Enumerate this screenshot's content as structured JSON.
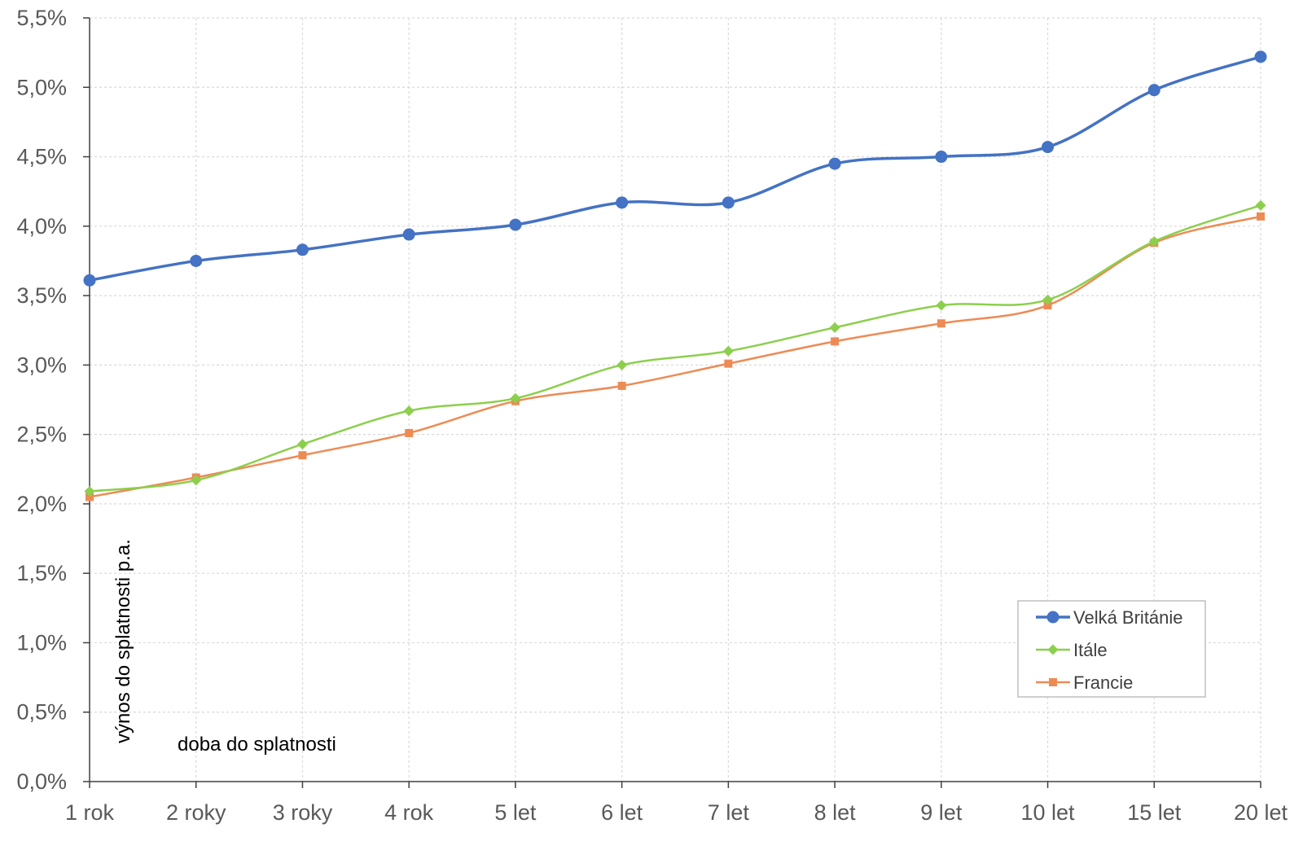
{
  "chart_data": {
    "type": "line",
    "categories": [
      "1 rok",
      "2 roky",
      "3 roky",
      "4 rok",
      "5 let",
      "6 let",
      "7 let",
      "8 let",
      "9 let",
      "10 let",
      "15 let",
      "20 let"
    ],
    "series": [
      {
        "name": "Velká Británie",
        "color": "#4472C4",
        "marker": "circle",
        "values": [
          3.61,
          3.75,
          3.83,
          3.94,
          4.01,
          4.17,
          4.17,
          4.45,
          4.5,
          4.57,
          4.98,
          5.22
        ]
      },
      {
        "name": "Itále",
        "color": "#8CCF4D",
        "marker": "diamond",
        "values": [
          2.09,
          2.17,
          2.43,
          2.67,
          2.76,
          3.0,
          3.1,
          3.27,
          3.43,
          3.47,
          3.89,
          4.15
        ]
      },
      {
        "name": "Francie",
        "color": "#ED8B55",
        "marker": "square",
        "values": [
          2.05,
          2.19,
          2.35,
          2.51,
          2.74,
          2.85,
          3.01,
          3.17,
          3.3,
          3.43,
          3.88,
          4.07
        ]
      }
    ],
    "ylim": [
      0,
      5.5
    ],
    "yticks": [
      "0,0%",
      "0,5%",
      "1,0%",
      "1,5%",
      "2,0%",
      "2,5%",
      "3,0%",
      "3,5%",
      "4,0%",
      "4,5%",
      "5,0%",
      "5,5%"
    ],
    "xlabel": "doba do splatnosti",
    "ylabel": "výnos do splatnosti p.a.",
    "grid": true,
    "legend": "bottom-right"
  }
}
